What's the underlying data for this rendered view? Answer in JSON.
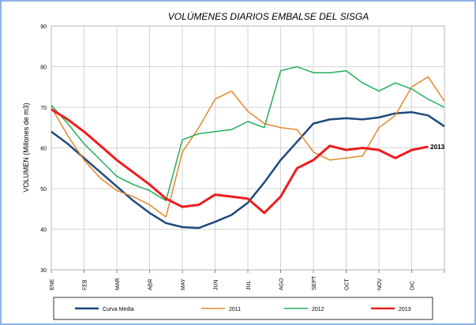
{
  "chart_data": {
    "type": "line",
    "title": "VOLÚMENES DIARIOS EMBALSE DEL SISGA",
    "y_label": "VOLUMEN (Millones de m3)",
    "categories": [
      "ENE",
      null,
      "FEB",
      null,
      "MAR",
      null,
      "ABR",
      null,
      "MAY",
      null,
      "JUN",
      null,
      "JUL",
      null,
      "AGO",
      null,
      "SEPT",
      null,
      "OCT",
      null,
      "NOV",
      null,
      "DIC",
      null,
      null
    ],
    "ylim": [
      30,
      90
    ],
    "yticks": [
      30,
      40,
      50,
      60,
      70,
      80,
      90
    ],
    "grid": true,
    "legend": "bottom",
    "series": [
      {
        "name": "Curva Media",
        "color": "#1f497d",
        "values": [
          64,
          61,
          57.5,
          54,
          50.5,
          47,
          44,
          41.5,
          40.5,
          40.3,
          41.8,
          43.5,
          46.5,
          51.5,
          57,
          61.5,
          66,
          67,
          67.3,
          67,
          67.5,
          68.5,
          68.8,
          68,
          65.3
        ]
      },
      {
        "name": "2011",
        "color": "#e3892b",
        "values": [
          70,
          63,
          57,
          52.5,
          49.5,
          48,
          46,
          43,
          59,
          65,
          72,
          74,
          69,
          66,
          65,
          64.5,
          59,
          57,
          57.5,
          58,
          65,
          68,
          75,
          77.5,
          71.5
        ]
      },
      {
        "name": "2012",
        "color": "#1fb05a",
        "values": [
          70.5,
          66,
          61,
          57,
          53,
          51,
          49.5,
          47,
          62,
          63.5,
          64,
          64.5,
          66.5,
          65,
          79,
          80,
          78.5,
          78.5,
          79,
          76,
          74,
          76,
          74.5,
          72,
          70
        ]
      },
      {
        "name": "2013",
        "color": "#ee1c1c",
        "values": [
          69.5,
          67,
          64,
          60.5,
          57,
          54,
          51,
          47.5,
          45.5,
          46,
          48.5,
          48,
          47.5,
          44,
          48,
          55,
          57,
          60.5,
          59.5,
          60,
          59.5,
          57.5,
          59.5,
          60.3,
          null
        ]
      }
    ]
  }
}
